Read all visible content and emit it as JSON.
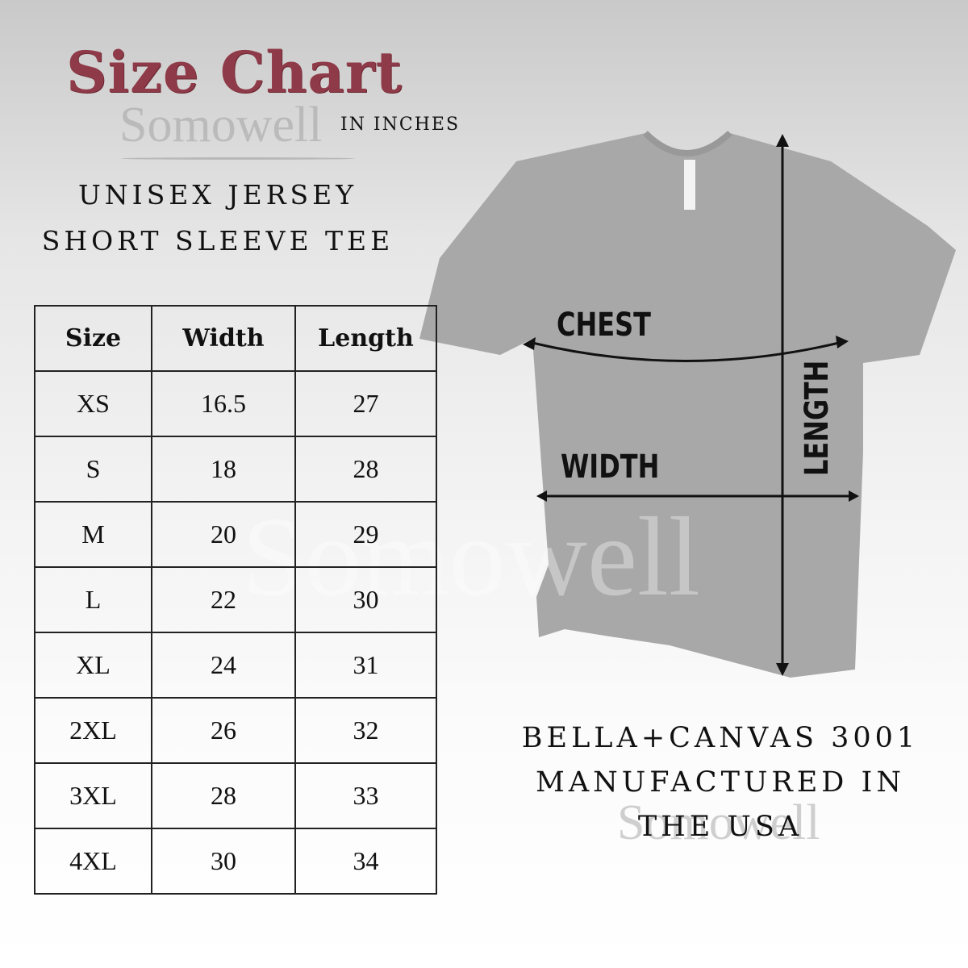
{
  "title": "Size Chart",
  "unit": "IN INCHES",
  "watermark": "Somowell",
  "subtitle": [
    "UNISEX JERSEY",
    "SHORT SLEEVE TEE"
  ],
  "table": {
    "headers": [
      "Size",
      "Width",
      "Length"
    ],
    "rows": [
      [
        "XS",
        "16.5",
        "27"
      ],
      [
        "S",
        "18",
        "28"
      ],
      [
        "M",
        "20",
        "29"
      ],
      [
        "L",
        "22",
        "30"
      ],
      [
        "XL",
        "24",
        "31"
      ],
      [
        "2XL",
        "26",
        "32"
      ],
      [
        "3XL",
        "28",
        "33"
      ],
      [
        "4XL",
        "30",
        "34"
      ]
    ]
  },
  "diagram": {
    "chest": "CHEST",
    "width": "WIDTH",
    "length": "LENGTH",
    "shirt_color": "#a8a8a8"
  },
  "footer": [
    "BELLA+CANVAS 3001",
    "MANUFACTURED IN",
    "THE USA"
  ],
  "colors": {
    "title": "#8f3a48"
  }
}
